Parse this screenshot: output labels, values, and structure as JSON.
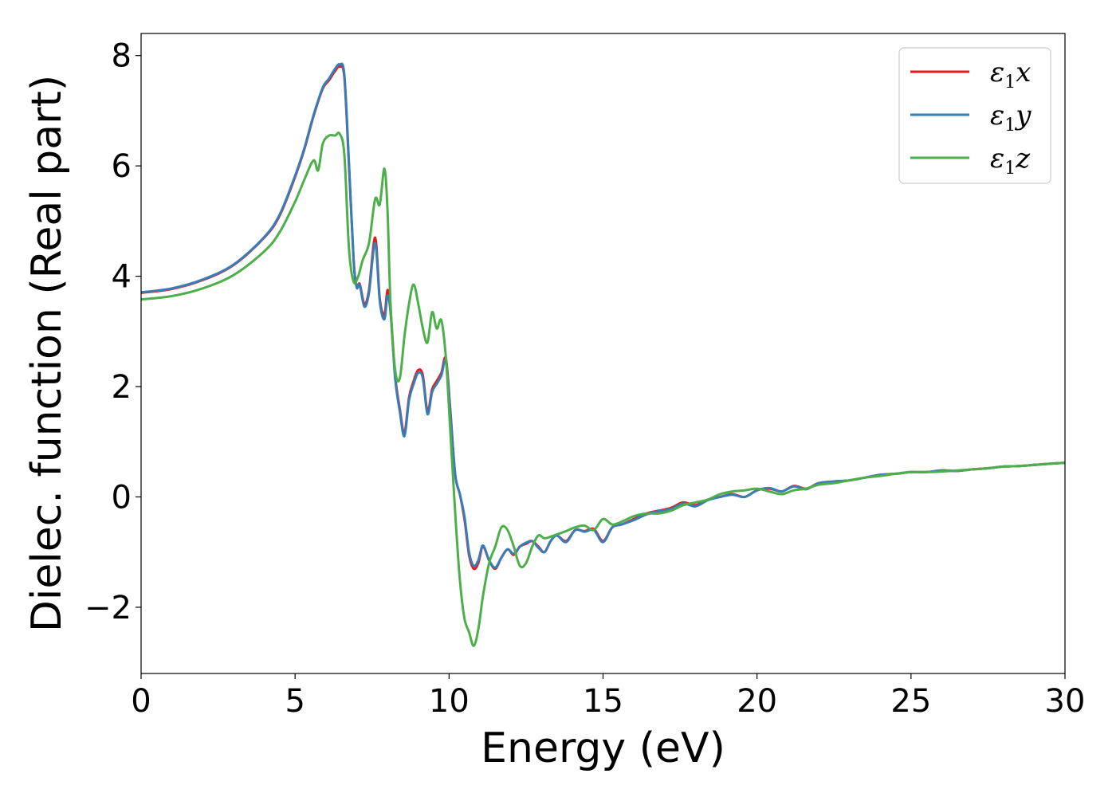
{
  "chart_data": {
    "type": "line",
    "title": "",
    "xlabel": "Energy (eV)",
    "ylabel": "Dielec. function (Real part)",
    "xlim": [
      0,
      30
    ],
    "ylim": [
      -3.2,
      8.4
    ],
    "xticks": [
      0,
      5,
      10,
      15,
      20,
      25,
      30
    ],
    "xtick_labels": [
      "0",
      "5",
      "10",
      "15",
      "20",
      "25",
      "30"
    ],
    "yticks": [
      -2,
      0,
      2,
      4,
      6,
      8
    ],
    "ytick_labels": [
      "−2",
      "0",
      "2",
      "4",
      "6",
      "8"
    ],
    "grid": false,
    "legend": {
      "position": "top-right"
    },
    "series": [
      {
        "name": "ε₁x",
        "legend_main": "ε",
        "legend_sub": "1",
        "legend_tail": "x",
        "color": "#e41a1c",
        "x": [
          0,
          1,
          2,
          3,
          4,
          4.5,
          5,
          5.3,
          5.6,
          5.9,
          6.1,
          6.3,
          6.45,
          6.6,
          6.75,
          6.9,
          7.0,
          7.1,
          7.25,
          7.4,
          7.6,
          7.75,
          7.9,
          8.0,
          8.1,
          8.25,
          8.4,
          8.55,
          8.7,
          8.85,
          9.0,
          9.15,
          9.3,
          9.45,
          9.6,
          9.75,
          9.9,
          10.05,
          10.2,
          10.35,
          10.5,
          10.65,
          10.8,
          10.95,
          11.1,
          11.3,
          11.5,
          11.7,
          11.9,
          12.1,
          12.3,
          12.5,
          12.7,
          12.9,
          13.1,
          13.3,
          13.5,
          13.8,
          14.1,
          14.4,
          14.7,
          15.0,
          15.3,
          15.6,
          16.0,
          16.4,
          16.8,
          17.2,
          17.6,
          18.0,
          18.4,
          18.8,
          19.2,
          19.6,
          20.0,
          20.4,
          20.8,
          21.2,
          21.6,
          22.0,
          22.5,
          23.0,
          23.5,
          24.0,
          24.5,
          25.0,
          25.5,
          26.0,
          26.5,
          27.0,
          27.5,
          28.0,
          28.5,
          29.0,
          29.5,
          30.0
        ],
        "y": [
          3.7,
          3.77,
          3.93,
          4.2,
          4.7,
          5.1,
          5.8,
          6.3,
          6.9,
          7.4,
          7.55,
          7.72,
          7.8,
          7.6,
          6.0,
          4.3,
          3.82,
          3.86,
          3.5,
          3.75,
          4.7,
          3.6,
          3.3,
          3.75,
          3.4,
          2.2,
          1.6,
          1.15,
          1.8,
          2.1,
          2.3,
          2.2,
          1.55,
          1.95,
          2.1,
          2.25,
          2.5,
          1.5,
          0.4,
          0.05,
          -0.4,
          -1.05,
          -1.3,
          -1.2,
          -0.9,
          -1.15,
          -1.3,
          -1.1,
          -0.95,
          -1.05,
          -0.9,
          -0.85,
          -0.8,
          -0.9,
          -1.0,
          -0.8,
          -0.7,
          -0.8,
          -0.6,
          -0.62,
          -0.58,
          -0.8,
          -0.55,
          -0.5,
          -0.4,
          -0.3,
          -0.25,
          -0.2,
          -0.1,
          -0.15,
          -0.05,
          0.0,
          0.05,
          0.0,
          0.12,
          0.15,
          0.1,
          0.2,
          0.15,
          0.25,
          0.28,
          0.3,
          0.35,
          0.4,
          0.42,
          0.45,
          0.45,
          0.48,
          0.47,
          0.5,
          0.52,
          0.55,
          0.56,
          0.58,
          0.6,
          0.62
        ]
      },
      {
        "name": "ε₁y",
        "legend_main": "ε",
        "legend_sub": "1",
        "legend_tail": "y",
        "color": "#377eb8",
        "x": [
          0,
          1,
          2,
          3,
          4,
          4.5,
          5,
          5.3,
          5.6,
          5.9,
          6.1,
          6.3,
          6.45,
          6.6,
          6.75,
          6.9,
          7.0,
          7.1,
          7.25,
          7.4,
          7.6,
          7.75,
          7.9,
          8.0,
          8.1,
          8.25,
          8.4,
          8.55,
          8.7,
          8.85,
          9.0,
          9.15,
          9.3,
          9.45,
          9.6,
          9.75,
          9.9,
          10.05,
          10.2,
          10.35,
          10.5,
          10.65,
          10.8,
          10.95,
          11.1,
          11.3,
          11.5,
          11.7,
          11.9,
          12.1,
          12.3,
          12.5,
          12.7,
          12.9,
          13.1,
          13.3,
          13.5,
          13.8,
          14.1,
          14.4,
          14.7,
          15.0,
          15.3,
          15.6,
          16.0,
          16.4,
          16.8,
          17.2,
          17.6,
          18.0,
          18.4,
          18.8,
          19.2,
          19.6,
          20.0,
          20.4,
          20.8,
          21.2,
          21.6,
          22.0,
          22.5,
          23.0,
          23.5,
          24.0,
          24.5,
          25.0,
          25.5,
          26.0,
          26.5,
          27.0,
          27.5,
          28.0,
          28.5,
          29.0,
          29.5,
          30.0
        ],
        "y": [
          3.71,
          3.78,
          3.94,
          4.21,
          4.71,
          5.12,
          5.82,
          6.32,
          6.92,
          7.42,
          7.58,
          7.76,
          7.84,
          7.65,
          6.05,
          4.3,
          3.8,
          3.84,
          3.45,
          3.7,
          4.6,
          3.55,
          3.22,
          3.65,
          3.35,
          2.15,
          1.55,
          1.1,
          1.75,
          2.05,
          2.25,
          2.15,
          1.5,
          1.9,
          2.05,
          2.2,
          2.45,
          1.45,
          0.4,
          0.05,
          -0.35,
          -1.0,
          -1.25,
          -1.15,
          -0.88,
          -1.15,
          -1.28,
          -1.1,
          -0.95,
          -1.03,
          -0.9,
          -0.83,
          -0.8,
          -0.92,
          -1.0,
          -0.8,
          -0.7,
          -0.82,
          -0.6,
          -0.63,
          -0.6,
          -0.82,
          -0.55,
          -0.5,
          -0.42,
          -0.32,
          -0.26,
          -0.22,
          -0.12,
          -0.17,
          -0.06,
          0.0,
          0.04,
          0.0,
          0.12,
          0.16,
          0.1,
          0.19,
          0.14,
          0.25,
          0.28,
          0.3,
          0.35,
          0.4,
          0.42,
          0.45,
          0.45,
          0.48,
          0.47,
          0.5,
          0.52,
          0.55,
          0.56,
          0.58,
          0.6,
          0.62
        ]
      },
      {
        "name": "ε₁z",
        "legend_main": "ε",
        "legend_sub": "1",
        "legend_tail": "z",
        "color": "#4daf4a",
        "x": [
          0,
          1,
          2,
          3,
          4,
          4.5,
          5,
          5.3,
          5.6,
          5.75,
          5.9,
          6.1,
          6.3,
          6.45,
          6.6,
          6.75,
          6.9,
          7.05,
          7.2,
          7.4,
          7.6,
          7.75,
          7.9,
          8.0,
          8.1,
          8.25,
          8.4,
          8.55,
          8.7,
          8.85,
          9.0,
          9.15,
          9.3,
          9.45,
          9.6,
          9.75,
          9.9,
          10.05,
          10.2,
          10.35,
          10.5,
          10.65,
          10.8,
          10.95,
          11.1,
          11.3,
          11.5,
          11.7,
          11.9,
          12.1,
          12.3,
          12.5,
          12.7,
          12.9,
          13.1,
          13.3,
          13.5,
          13.8,
          14.1,
          14.4,
          14.7,
          15.0,
          15.3,
          15.6,
          16.0,
          16.4,
          16.8,
          17.2,
          17.6,
          18.0,
          18.4,
          18.8,
          19.2,
          19.6,
          20.0,
          20.4,
          20.8,
          21.2,
          21.6,
          22.0,
          22.5,
          23.0,
          23.5,
          24.0,
          24.5,
          25.0,
          25.5,
          26.0,
          26.5,
          27.0,
          27.5,
          28.0,
          28.5,
          29.0,
          29.5,
          30.0
        ],
        "y": [
          3.58,
          3.64,
          3.78,
          4.02,
          4.45,
          4.8,
          5.35,
          5.75,
          6.1,
          5.92,
          6.4,
          6.55,
          6.55,
          6.58,
          6.2,
          4.5,
          3.9,
          4.0,
          4.3,
          4.6,
          5.4,
          5.3,
          5.95,
          5.2,
          3.5,
          2.3,
          2.15,
          2.9,
          3.5,
          3.85,
          3.5,
          3.05,
          2.8,
          3.35,
          3.05,
          3.2,
          2.5,
          1.1,
          -0.3,
          -1.5,
          -2.2,
          -2.45,
          -2.7,
          -2.4,
          -1.8,
          -1.2,
          -0.9,
          -0.55,
          -0.6,
          -0.9,
          -1.25,
          -1.2,
          -0.9,
          -0.7,
          -0.75,
          -0.72,
          -0.68,
          -0.62,
          -0.55,
          -0.52,
          -0.6,
          -0.4,
          -0.5,
          -0.45,
          -0.35,
          -0.3,
          -0.3,
          -0.25,
          -0.15,
          -0.1,
          -0.05,
          0.05,
          0.1,
          0.12,
          0.15,
          0.1,
          0.05,
          0.12,
          0.15,
          0.22,
          0.25,
          0.3,
          0.35,
          0.38,
          0.42,
          0.45,
          0.45,
          0.46,
          0.48,
          0.5,
          0.52,
          0.55,
          0.56,
          0.58,
          0.6,
          0.62
        ]
      }
    ]
  }
}
